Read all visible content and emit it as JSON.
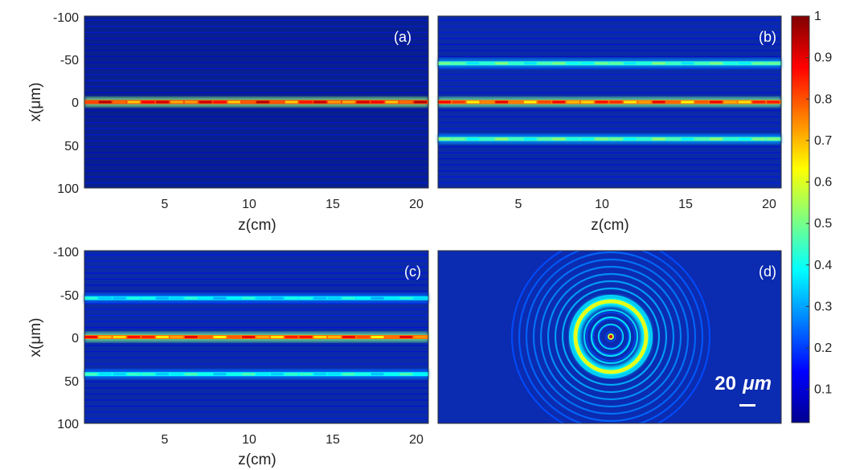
{
  "chart_data": [
    {
      "type": "heatmap",
      "panel": "(a)",
      "xlabel": "z(cm)",
      "ylabel": "x(μm)",
      "xlim": [
        0.5,
        21
      ],
      "ylim": [
        -100,
        100
      ],
      "x_ticks": [
        "5",
        "10",
        "15",
        "20"
      ],
      "y_ticks": [
        "-100",
        "-50",
        "0",
        "50",
        "100"
      ],
      "bands": [
        {
          "x_um": 0,
          "intensity": 0.95
        }
      ]
    },
    {
      "type": "heatmap",
      "panel": "(b)",
      "xlabel": "z(cm)",
      "ylabel": "",
      "xlim": [
        0.5,
        21
      ],
      "ylim": [
        -100,
        100
      ],
      "x_ticks": [
        "5",
        "10",
        "15",
        "20"
      ],
      "y_ticks": [],
      "bands": [
        {
          "x_um": -45,
          "intensity": 0.5
        },
        {
          "x_um": 0,
          "intensity": 0.9
        },
        {
          "x_um": 43,
          "intensity": 0.52
        }
      ]
    },
    {
      "type": "heatmap",
      "panel": "(c)",
      "xlabel": "z(cm)",
      "ylabel": "x(μm)",
      "xlim": [
        0.5,
        21
      ],
      "ylim": [
        -100,
        100
      ],
      "x_ticks": [
        "5",
        "10",
        "15",
        "20"
      ],
      "y_ticks": [
        "-100",
        "-50",
        "0",
        "50",
        "100"
      ],
      "bands": [
        {
          "x_um": -45,
          "intensity": 0.42
        },
        {
          "x_um": 0,
          "intensity": 0.9
        },
        {
          "x_um": 43,
          "intensity": 0.45
        }
      ]
    },
    {
      "type": "heatmap",
      "panel": "(d)",
      "description_kind": "transverse intensity profile with central spot and bright ring",
      "scale_bar": {
        "value": "20",
        "unit": "μm"
      },
      "ring_intensity": 0.6,
      "center_intensity": 0.9
    }
  ],
  "colorbar": {
    "min": 0.02,
    "max": 1,
    "ticks": [
      "1",
      "0.9",
      "0.8",
      "0.7",
      "0.6",
      "0.5",
      "0.4",
      "0.3",
      "0.2",
      "0.1"
    ],
    "colormap": "jet"
  },
  "colors": {
    "background_dark": "#00008b",
    "field_blue": "#0a28b4",
    "axis": "#333333"
  }
}
